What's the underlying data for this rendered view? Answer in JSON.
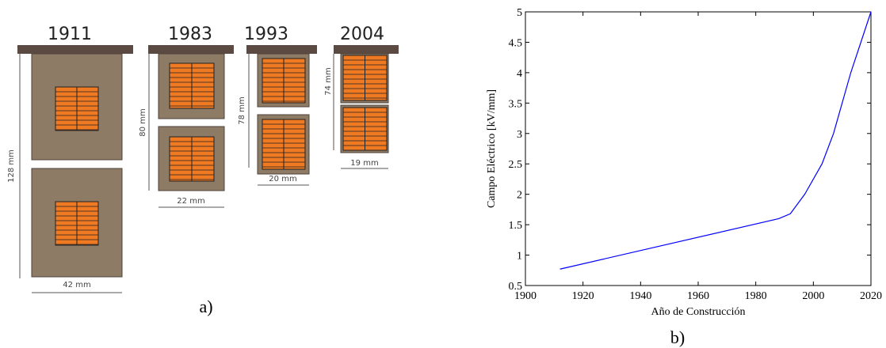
{
  "diagram": {
    "panels": [
      {
        "year": "1911",
        "height": "128 mm",
        "width": "42 mm"
      },
      {
        "year": "1983",
        "height": "80 mm",
        "width": "22 mm"
      },
      {
        "year": "1993",
        "height": "78 mm",
        "width": "20 mm"
      },
      {
        "year": "2004",
        "height": "74 mm",
        "width": "19 mm"
      }
    ],
    "caption": "a)"
  },
  "chart_data": {
    "type": "line",
    "caption": "b)",
    "xlabel": "Año de Construcción",
    "ylabel": "Campo Eléctrico [kV/mm]",
    "x": [
      1912,
      1988,
      1992,
      1997,
      2003,
      2007,
      2013,
      2020
    ],
    "values": [
      0.77,
      1.6,
      1.68,
      2.0,
      2.5,
      3.0,
      4.0,
      5.0
    ],
    "color": "#0000ff",
    "xlim": [
      1900,
      2020
    ],
    "xticks": [
      1900,
      1920,
      1940,
      1960,
      1980,
      2000,
      2020
    ],
    "ylim": [
      0.5,
      5
    ],
    "yticks": [
      0.5,
      1,
      1.5,
      2,
      2.5,
      3,
      3.5,
      4,
      4.5,
      5
    ]
  }
}
